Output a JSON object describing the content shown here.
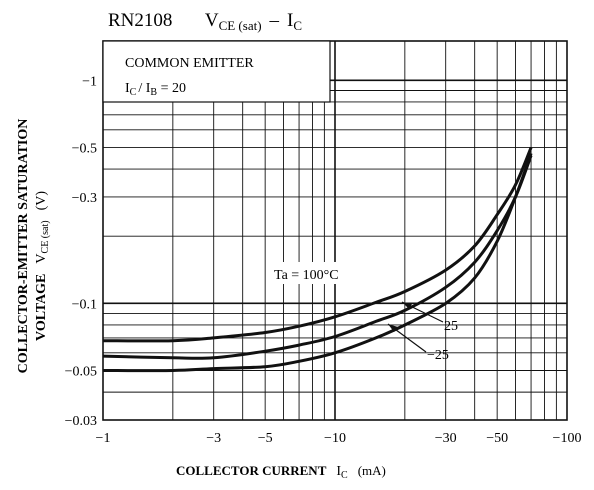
{
  "chart_data": {
    "type": "line",
    "title": {
      "part_number": "RN2108",
      "quantity_main": "V",
      "quantity_sub": "CE (sat)",
      "separator": "–",
      "vs_main": "I",
      "vs_sub": "C"
    },
    "xlabel": {
      "text": "COLLECTOR CURRENT",
      "symbol": "I",
      "symbol_sub": "C",
      "unit": "(mA)"
    },
    "ylabel": {
      "line1": "COLLECTOR-EMITTER SATURATION",
      "line2": "VOLTAGE",
      "symbol": "V",
      "symbol_sub": "CE (sat)",
      "unit": "(V)"
    },
    "x_scale": "log",
    "y_scale": "log",
    "xlim": [
      -1,
      -100
    ],
    "ylim": [
      -0.03,
      -1.5
    ],
    "x_ticks": [
      {
        "value": -1,
        "label": "−1"
      },
      {
        "value": -3,
        "label": "−3"
      },
      {
        "value": -5,
        "label": "−5"
      },
      {
        "value": -10,
        "label": "−10"
      },
      {
        "value": -30,
        "label": "−30"
      },
      {
        "value": -50,
        "label": "−50"
      },
      {
        "value": -100,
        "label": "−100"
      }
    ],
    "y_ticks": [
      {
        "value": -0.03,
        "label": "−0.03"
      },
      {
        "value": -0.05,
        "label": "−0.05"
      },
      {
        "value": -0.1,
        "label": "−0.1"
      },
      {
        "value": -0.3,
        "label": "−0.3"
      },
      {
        "value": -0.5,
        "label": "−0.5"
      },
      {
        "value": -1,
        "label": "−1"
      }
    ],
    "grid": true,
    "legend": {
      "line1": "COMMON EMITTER",
      "line2_main": "I",
      "line2_sub1": "C",
      "line2_mid": "/ I",
      "line2_sub2": "B",
      "line2_end": " = 20"
    },
    "series": [
      {
        "name": "Ta = 100°C",
        "x": [
          -1,
          -2,
          -3,
          -5,
          -7,
          -10,
          -15,
          -20,
          -30,
          -40,
          -50,
          -60,
          -70
        ],
        "y": [
          -0.068,
          -0.068,
          -0.07,
          -0.074,
          -0.079,
          -0.087,
          -0.101,
          -0.113,
          -0.141,
          -0.181,
          -0.25,
          -0.34,
          -0.5
        ]
      },
      {
        "name": "25",
        "x": [
          -1,
          -2,
          -3,
          -5,
          -7,
          -10,
          -15,
          -20,
          -30,
          -40,
          -50,
          -60,
          -70
        ],
        "y": [
          -0.058,
          -0.057,
          -0.057,
          -0.061,
          -0.065,
          -0.071,
          -0.083,
          -0.093,
          -0.118,
          -0.153,
          -0.212,
          -0.3,
          -0.46
        ]
      },
      {
        "name": "−25",
        "x": [
          -1,
          -2,
          -3,
          -5,
          -7,
          -10,
          -15,
          -20,
          -30,
          -40,
          -50,
          -60,
          -70
        ],
        "y": [
          -0.05,
          -0.05,
          -0.051,
          -0.052,
          -0.055,
          -0.06,
          -0.07,
          -0.08,
          -0.1,
          -0.13,
          -0.19,
          -0.3,
          -0.47
        ]
      }
    ]
  }
}
